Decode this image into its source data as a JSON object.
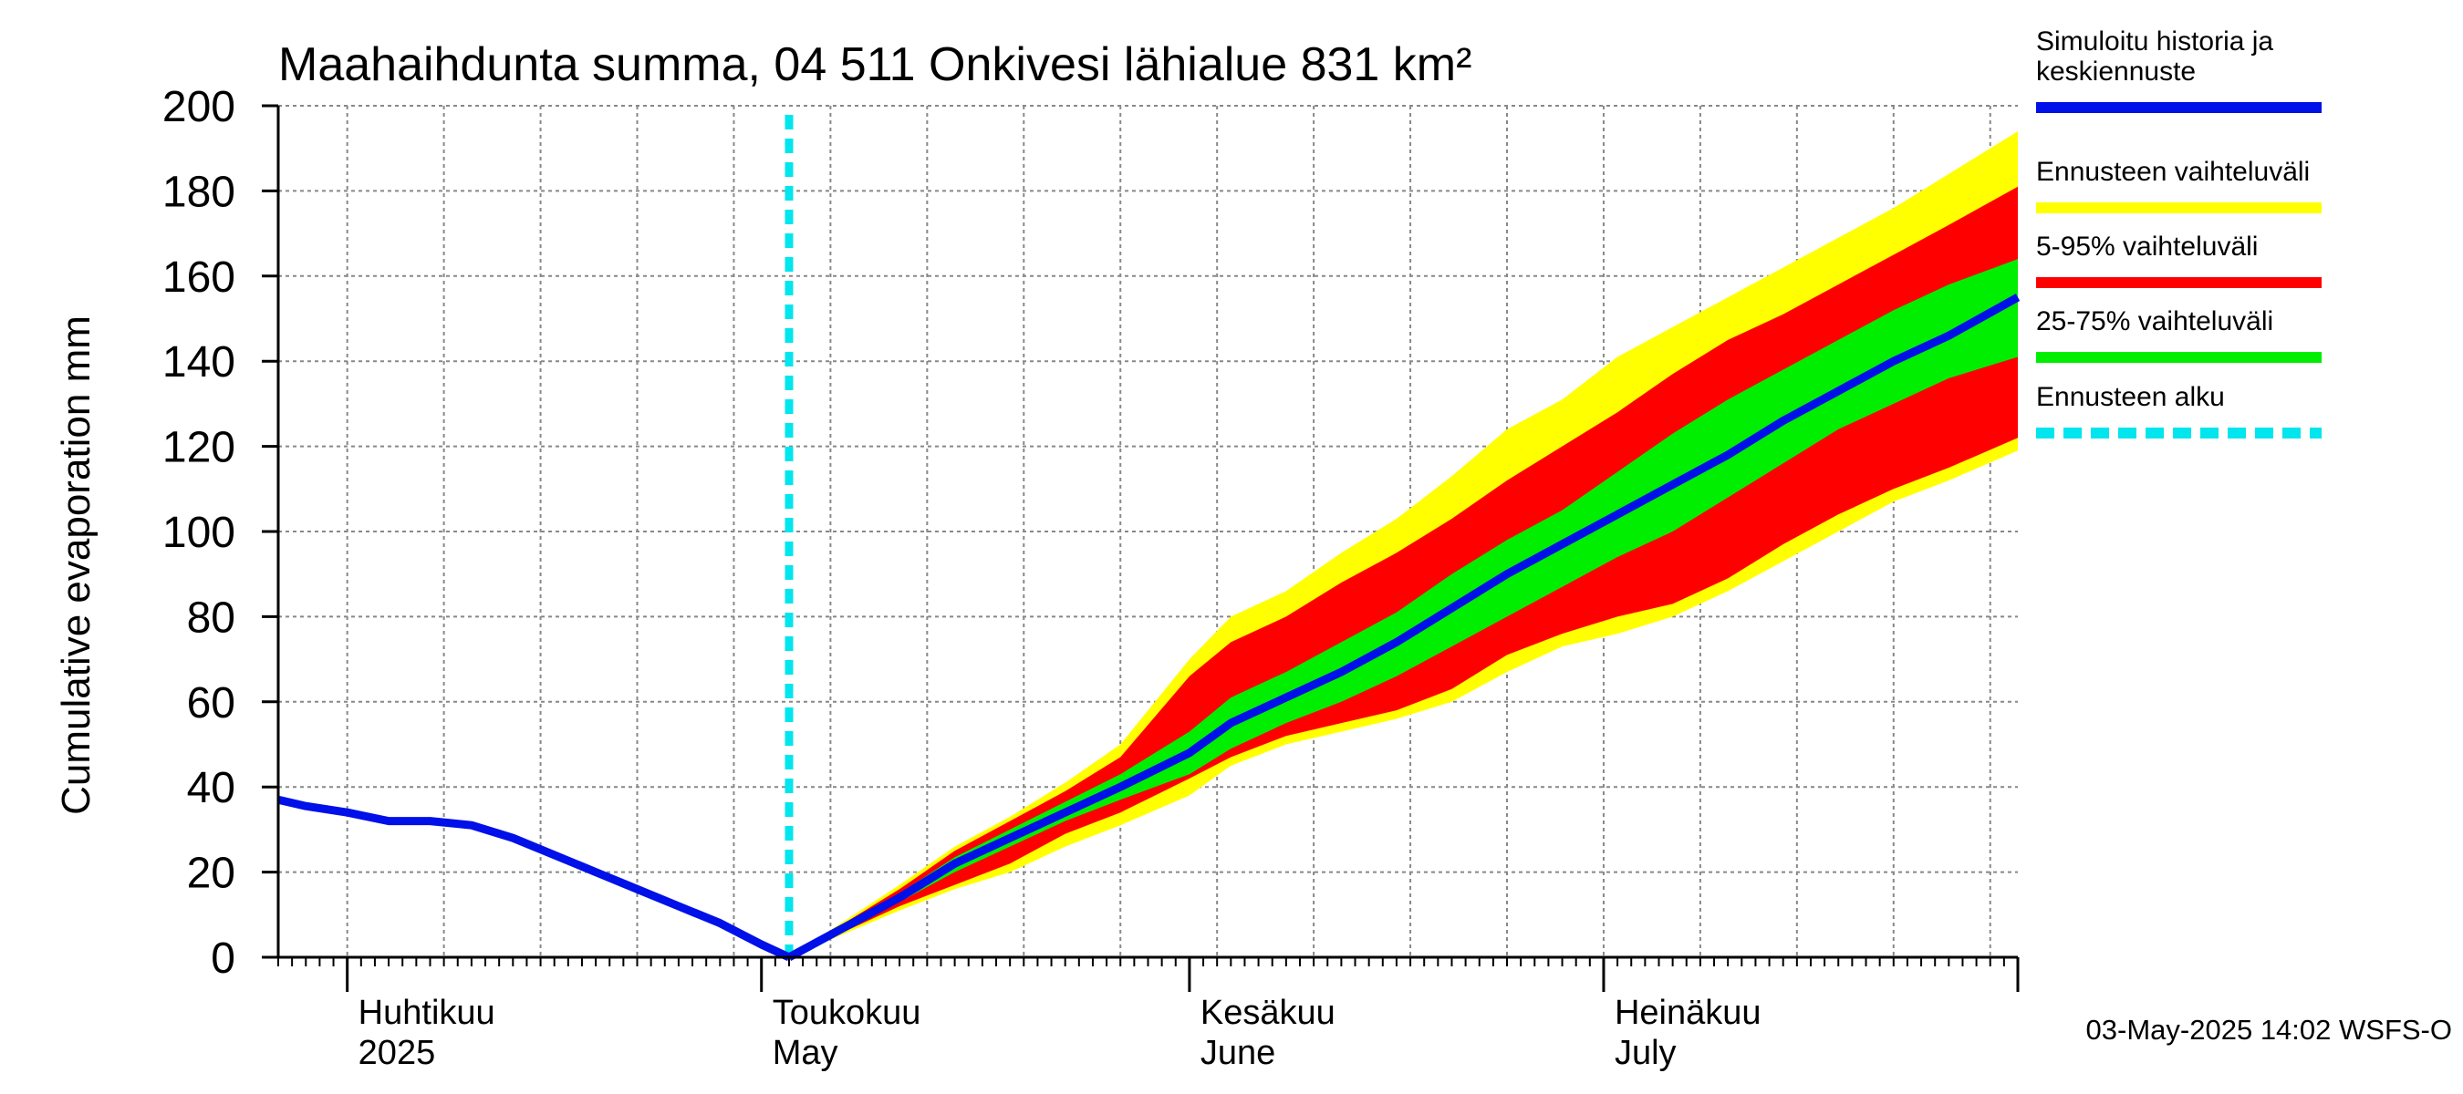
{
  "chart_data": {
    "type": "area",
    "title": "Maahaihdunta summa, 04 511 Onkivesi lähialue 831 km²",
    "ylabel": "Cumulative evaporation   mm",
    "xlabel": "",
    "ylim": [
      0,
      200
    ],
    "yticks": [
      "0",
      "20",
      "40",
      "60",
      "80",
      "100",
      "120",
      "140",
      "160",
      "180",
      "200"
    ],
    "xlim": [
      "2025-03-27",
      "2025-07-31"
    ],
    "grid": true,
    "forecast_start": "2025-05-03",
    "months": [
      {
        "date": "2025-04-01",
        "fi": "Huhtikuu",
        "en": "2025"
      },
      {
        "date": "2025-05-01",
        "fi": "Toukokuu",
        "en": "May"
      },
      {
        "date": "2025-06-01",
        "fi": "Kesäkuu",
        "en": "June"
      },
      {
        "date": "2025-07-01",
        "fi": "Heinäkuu",
        "en": "July"
      }
    ],
    "history": {
      "name": "Simuloitu historia ja keskiennuste",
      "x": [
        "2025-03-27",
        "2025-03-29",
        "2025-04-01",
        "2025-04-04",
        "2025-04-07",
        "2025-04-10",
        "2025-04-13",
        "2025-04-16",
        "2025-04-19",
        "2025-04-22",
        "2025-04-25",
        "2025-04-28",
        "2025-05-01",
        "2025-05-03"
      ],
      "y": [
        37,
        35.5,
        34,
        32,
        32,
        31,
        28,
        24,
        20,
        16,
        12,
        8,
        3,
        0
      ]
    },
    "bands": {
      "x": [
        "2025-05-03",
        "2025-05-07",
        "2025-05-11",
        "2025-05-15",
        "2025-05-19",
        "2025-05-23",
        "2025-05-27",
        "2025-06-01",
        "2025-06-04",
        "2025-06-08",
        "2025-06-12",
        "2025-06-16",
        "2025-06-20",
        "2025-06-24",
        "2025-06-28",
        "2025-07-02",
        "2025-07-06",
        "2025-07-10",
        "2025-07-14",
        "2025-07-18",
        "2025-07-22",
        "2025-07-26",
        "2025-07-31"
      ],
      "median": [
        0,
        7,
        14,
        22,
        28,
        34,
        40,
        48,
        55,
        61,
        67,
        74,
        82,
        90,
        97,
        104,
        111,
        118,
        126,
        133,
        140,
        146,
        155
      ],
      "p25": [
        0,
        6.5,
        13,
        20,
        26,
        32,
        37,
        43,
        49,
        55,
        60,
        66,
        73,
        80,
        87,
        94,
        100,
        108,
        116,
        124,
        130,
        136,
        141
      ],
      "p75": [
        0,
        7.5,
        15,
        23.5,
        30,
        36.5,
        43,
        53,
        61,
        67,
        74,
        81,
        90,
        98,
        105,
        114,
        123,
        131,
        138,
        145,
        152,
        158,
        164
      ],
      "p5": [
        0,
        6,
        12,
        17,
        22,
        29,
        34,
        42,
        47,
        52,
        55,
        58,
        63,
        71,
        76,
        80,
        83,
        89,
        97,
        104,
        110,
        115,
        122
      ],
      "p95": [
        0,
        8,
        16,
        25,
        32,
        39,
        47,
        66,
        74,
        80,
        88,
        95,
        103,
        112,
        120,
        128,
        137,
        145,
        151,
        158,
        165,
        172,
        181
      ],
      "min": [
        0,
        5.5,
        11,
        16,
        20,
        26,
        31,
        38,
        45,
        50,
        53,
        56,
        60,
        67,
        73,
        76,
        80,
        86,
        93,
        100,
        107,
        112,
        119
      ],
      "max": [
        0,
        8.5,
        17,
        26,
        33,
        41,
        50,
        70,
        80,
        86,
        95,
        103,
        113,
        124,
        131,
        141,
        148,
        155,
        162,
        169,
        176,
        184,
        194
      ]
    },
    "legend": [
      {
        "label": "Simuloitu historia ja\nkeskiennuste",
        "color": "#0010e8"
      },
      {
        "label": "Ennusteen vaihteluväli",
        "color": "#ffff00"
      },
      {
        "label": "5-95% vaihteluväli",
        "color": "#ff0000"
      },
      {
        "label": "25-75% vaihteluväli",
        "color": "#00ee00"
      },
      {
        "label": "Ennusteen alku",
        "color": "#00e5ee"
      }
    ],
    "legend_position": "right",
    "footer": "03-May-2025 14:02 WSFS-O"
  }
}
